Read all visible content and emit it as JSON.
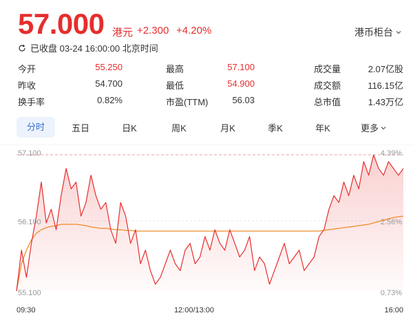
{
  "header": {
    "price": "57.000",
    "unit": "港元",
    "change": "+2.300",
    "change_pct": "+4.20%",
    "market_select": "港币柜台"
  },
  "status": {
    "text": "已收盘 03-24 16:00:00 北京时间"
  },
  "stats": [
    [
      {
        "label": "今开",
        "value": "55.250",
        "color": "red"
      },
      {
        "label": "最高",
        "value": "57.100",
        "color": "red"
      },
      {
        "label": "成交量",
        "value": "2.07亿股",
        "color": "normal"
      }
    ],
    [
      {
        "label": "昨收",
        "value": "54.700",
        "color": "normal"
      },
      {
        "label": "最低",
        "value": "54.900",
        "color": "red"
      },
      {
        "label": "成交额",
        "value": "116.15亿",
        "color": "normal"
      }
    ],
    [
      {
        "label": "换手率",
        "value": "0.82%",
        "color": "normal"
      },
      {
        "label": "市盈(TTM)",
        "value": "56.03",
        "color": "normal"
      },
      {
        "label": "总市值",
        "value": "1.43万亿",
        "color": "normal"
      }
    ]
  ],
  "tabs": [
    "分时",
    "五日",
    "日K",
    "周K",
    "月K",
    "季K",
    "年K",
    "更多"
  ],
  "active_tab": 0,
  "colors": {
    "up": "#e62d2d",
    "avg_line": "#f08a24",
    "active_tab_bg": "#edf3fc",
    "active_tab_text": "#3a6fd8"
  },
  "chart_data": {
    "type": "line",
    "title": "",
    "y_labels_left": [
      "57.100",
      "56.100",
      "55.100"
    ],
    "y_labels_right": [
      "4.39%",
      "2.56%",
      "0.73%"
    ],
    "ylim": [
      55.1,
      57.1
    ],
    "x_labels": [
      "09:30",
      "12:00/13:00",
      "16:00"
    ],
    "series": [
      {
        "values": [
          55.1,
          55.7,
          55.3,
          55.8,
          56.2,
          56.7,
          56.1,
          56.3,
          56.0,
          56.5,
          56.9,
          56.6,
          56.7,
          56.2,
          56.4,
          56.8,
          56.5,
          56.3,
          56.4,
          56.0,
          55.8,
          56.4,
          56.2,
          55.8,
          56.0,
          55.5,
          55.7,
          55.4,
          55.2,
          55.3,
          55.5,
          55.7,
          55.5,
          55.4,
          55.7,
          55.8,
          55.5,
          55.6,
          55.9,
          55.7,
          56.0,
          55.8,
          55.7,
          56.0,
          55.8,
          55.6,
          55.7,
          55.9,
          55.4,
          55.6,
          55.5,
          55.2,
          55.4,
          55.6,
          55.8,
          55.5,
          55.6,
          55.7,
          55.4,
          55.5,
          55.6,
          55.9,
          56.0,
          56.3,
          56.5,
          56.4,
          56.7,
          56.5,
          56.8,
          56.6,
          57.0,
          56.8,
          57.1,
          56.9,
          56.8,
          57.0,
          56.9,
          56.8,
          56.9
        ]
      },
      {
        "values": [
          55.1,
          55.5,
          55.7,
          55.85,
          55.95,
          56.0,
          56.03,
          56.05,
          56.06,
          56.08,
          56.08,
          56.08,
          56.08,
          56.07,
          56.06,
          56.04,
          56.03,
          56.02,
          56.02,
          56.01,
          56.0,
          56.0,
          55.99,
          55.99,
          55.98,
          55.98,
          55.98,
          55.98,
          55.98,
          55.98,
          55.98,
          55.98,
          55.98,
          55.98,
          55.98,
          55.98,
          55.98,
          55.98,
          55.98,
          55.98,
          55.98,
          55.98,
          55.98,
          55.98,
          55.98,
          55.98,
          55.98,
          55.98,
          55.98,
          55.98,
          55.98,
          55.98,
          55.98,
          55.98,
          55.98,
          55.98,
          55.98,
          55.98,
          55.98,
          55.98,
          55.98,
          55.98,
          55.99,
          56.0,
          56.01,
          56.02,
          56.03,
          56.04,
          56.05,
          56.06,
          56.07,
          56.08,
          56.1,
          56.12,
          56.14,
          56.16,
          56.18,
          56.19,
          56.2
        ]
      }
    ]
  }
}
